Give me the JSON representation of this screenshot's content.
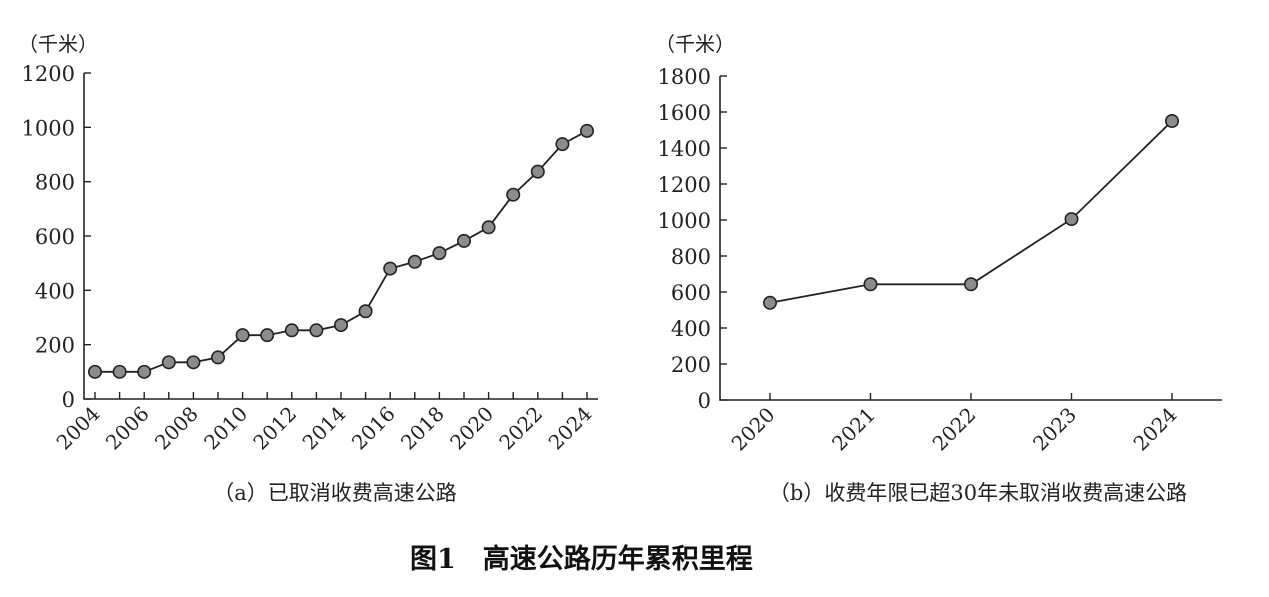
{
  "figure_title": "图1　高速公路历年累积里程",
  "chart_data": [
    {
      "type": "line",
      "unit_label": "（千米）",
      "caption": "（a）已取消收费高速公路",
      "x": [
        "2004",
        "2005",
        "2006",
        "2007",
        "2008",
        "2009",
        "2010",
        "2011",
        "2012",
        "2013",
        "2014",
        "2015",
        "2016",
        "2017",
        "2018",
        "2019",
        "2020",
        "2021",
        "2022",
        "2023",
        "2024"
      ],
      "x_tick_labels": [
        "2004",
        "2006",
        "2008",
        "2010",
        "2012",
        "2014",
        "2016",
        "2018",
        "2020",
        "2022",
        "2024"
      ],
      "values": [
        100,
        100,
        100,
        135,
        135,
        153,
        235,
        235,
        253,
        253,
        272,
        323,
        480,
        505,
        537,
        582,
        632,
        752,
        837,
        938,
        987
      ],
      "ylim": [
        0,
        1200
      ],
      "y_ticks": [
        0,
        200,
        400,
        600,
        800,
        1000,
        1200
      ],
      "marker_color": "#8c8c8c",
      "line_color": "#222222"
    },
    {
      "type": "line",
      "unit_label": "（千米）",
      "caption": "（b）收费年限已超30年未取消收费高速公路",
      "x": [
        "2020",
        "2021",
        "2022",
        "2023",
        "2024"
      ],
      "x_tick_labels": [
        "2020",
        "2021",
        "2022",
        "2023",
        "2024"
      ],
      "values": [
        540,
        643,
        643,
        1005,
        1550
      ],
      "ylim": [
        0,
        1800
      ],
      "y_ticks": [
        0,
        200,
        400,
        600,
        800,
        1000,
        1200,
        1400,
        1600,
        1800
      ],
      "marker_color": "#8c8c8c",
      "line_color": "#222222"
    }
  ]
}
